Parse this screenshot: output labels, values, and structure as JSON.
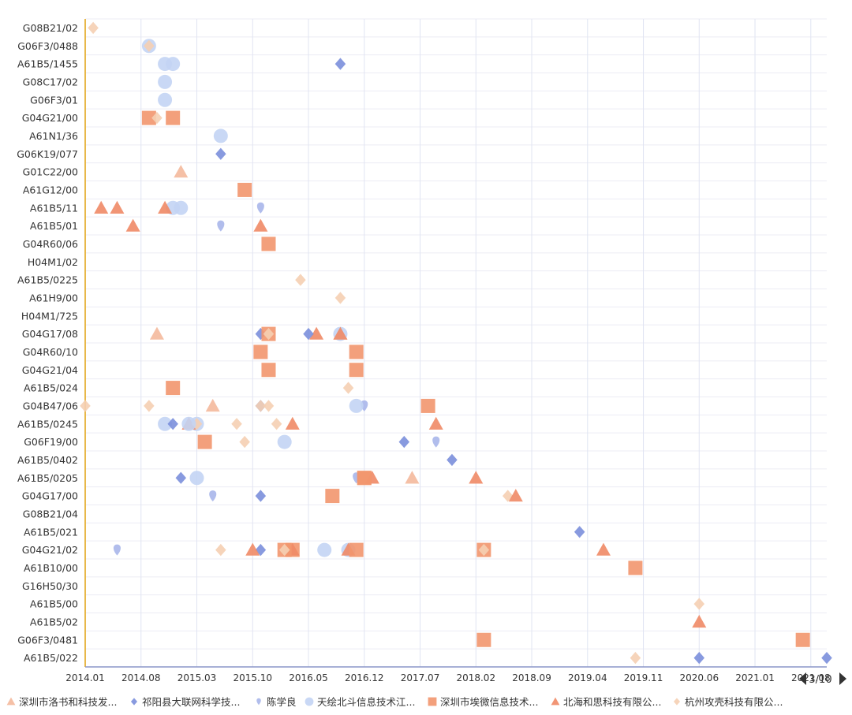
{
  "chart_data": {
    "type": "scatter",
    "title": "",
    "xlabel": "",
    "ylabel": "",
    "x_ticks": [
      "2014.01",
      "2014.08",
      "2015.03",
      "2015.10",
      "2016.05",
      "2016.12",
      "2017.07",
      "2018.02",
      "2018.09",
      "2019.04",
      "2019.11",
      "2020.06",
      "2021.01",
      "2021.08"
    ],
    "xlim": [
      "2014.01",
      "2021.10"
    ],
    "categories": [
      "G08B21/02",
      "G06F3/0488",
      "A61B5/1455",
      "G08C17/02",
      "G06F3/01",
      "G04G21/00",
      "A61N1/36",
      "G06K19/077",
      "G01C22/00",
      "A61G12/00",
      "A61B5/11",
      "A61B5/01",
      "G04R60/06",
      "H04M1/02",
      "A61B5/0225",
      "A61H9/00",
      "H04M1/725",
      "G04G17/08",
      "G04R60/10",
      "G04G21/04",
      "A61B5/024",
      "G04B47/06",
      "A61B5/0245",
      "G06F19/00",
      "A61B5/0402",
      "A61B5/0205",
      "G04G17/00",
      "G08B21/04",
      "A61B5/021",
      "G04G21/02",
      "A61B10/00",
      "G16H50/30",
      "A61B5/00",
      "A61B5/02",
      "G06F3/0481",
      "A61B5/022"
    ],
    "series": [
      {
        "name": "深圳市洛书和科技发...",
        "marker": "triangle",
        "color": "#f4b99c",
        "points": [
          [
            "2014.10",
            "G04G17/08"
          ],
          [
            "2015.01",
            "G01C22/00"
          ],
          [
            "2015.05",
            "G04B47/06"
          ],
          [
            "2016.09",
            "G04G17/08"
          ],
          [
            "2017.06",
            "A61B5/0205"
          ]
        ]
      },
      {
        "name": "祁阳县大联网科学技...",
        "marker": "diamond",
        "color": "#7b8fdb",
        "points": [
          [
            "2015.06",
            "G06K19/077"
          ],
          [
            "2017.05",
            "G06F19/00"
          ],
          [
            "2015.11",
            "G04G17/08"
          ],
          [
            "2015.11",
            "G04B47/06"
          ],
          [
            "2015.11",
            "G04G17/00"
          ],
          [
            "2015.11",
            "G04G21/02"
          ],
          [
            "2017.11",
            "A61B5/0402"
          ],
          [
            "2019.03",
            "A61B5/021"
          ]
        ]
      },
      {
        "name": "陈学良",
        "marker": "pin",
        "color": "#a9b6ea",
        "points": [
          [
            "2015.06",
            "A61B5/01"
          ],
          [
            "2016.12",
            "G04B47/06"
          ],
          [
            "2016.11",
            "A61B5/0205"
          ],
          [
            "2015.05",
            "G04G17/00"
          ],
          [
            "2014.05",
            "G04G21/02"
          ],
          [
            "2015.11",
            "A61B5/11"
          ],
          [
            "2017.09",
            "G06F19/00"
          ]
        ]
      },
      {
        "name": "天绘北斗信息技术江...",
        "marker": "circle",
        "color": "#c3d4f4",
        "points": [
          [
            "2015.06",
            "A61N1/36"
          ],
          [
            "2014.12",
            "A61B5/11"
          ],
          [
            "2016.09",
            "G04G17/08"
          ],
          [
            "2016.11",
            "G04B47/06"
          ],
          [
            "2015.03",
            "A61B5/0245"
          ],
          [
            "2015.03",
            "A61B5/0205"
          ],
          [
            "2016.07",
            "G04G21/02"
          ],
          [
            "2016.10",
            "G04G21/02"
          ]
        ]
      },
      {
        "name": "深圳市埃微信息技术...",
        "marker": "square",
        "color": "#f2966e",
        "points": [
          [
            "2014.09",
            "G04G21/00"
          ],
          [
            "2015.09",
            "A61G12/00"
          ],
          [
            "2015.12",
            "G04R60/06"
          ],
          [
            "2015.11",
            "G04R60/10"
          ],
          [
            "2016.11",
            "G04R60/10"
          ],
          [
            "2015.12",
            "G04G21/04"
          ],
          [
            "2016.11",
            "G04G21/04"
          ],
          [
            "2014.12",
            "A61B5/024"
          ],
          [
            "2017.08",
            "G04B47/06"
          ],
          [
            "2015.04",
            "G06F19/00"
          ],
          [
            "2016.12",
            "A61B5/0205"
          ],
          [
            "2016.08",
            "G04G17/00"
          ],
          [
            "2016.03",
            "G04G21/02"
          ],
          [
            "2018.03",
            "G04G21/02"
          ],
          [
            "2019.10",
            "A61B10/00"
          ],
          [
            "2018.03",
            "G06F3/0481"
          ],
          [
            "2021.07",
            "G06F3/0481"
          ]
        ]
      },
      {
        "name": "北海和思科技有限公...",
        "marker": "triangle",
        "color": "#f08a66",
        "points": [
          [
            "2014.03",
            "A61B5/11"
          ],
          [
            "2014.07",
            "A61B5/01"
          ],
          [
            "2015.11",
            "A61B5/01"
          ],
          [
            "2014.05",
            "A61B5/11"
          ],
          [
            "2014.11",
            "A61B5/11"
          ],
          [
            "2015.02",
            "A61B5/0245"
          ],
          [
            "2016.09",
            "G04G17/08"
          ],
          [
            "2017.01",
            "A61B5/0205"
          ],
          [
            "2018.02",
            "A61B5/0205"
          ],
          [
            "2016.03",
            "G04G21/02"
          ],
          [
            "2016.10",
            "G04G21/02"
          ],
          [
            "2019.06",
            "G04G21/02"
          ],
          [
            "2020.06",
            "A61B5/02"
          ]
        ]
      },
      {
        "name": "杭州攻壳科技有限公...",
        "marker": "diamond",
        "color": "#f5cfb3",
        "points": [
          [
            "2014.02",
            "G08B21/02"
          ],
          [
            "2014.10",
            "G04G21/00"
          ],
          [
            "2016.04",
            "A61B5/0225"
          ],
          [
            "2016.09",
            "A61H9/00"
          ],
          [
            "2016.10",
            "A61B5/024"
          ],
          [
            "2014.09",
            "G04B47/06"
          ],
          [
            "2015.06",
            "G04G21/02"
          ],
          [
            "2015.03",
            "A61B5/0245"
          ],
          [
            "2016.01",
            "A61B5/0245"
          ],
          [
            "2015.08",
            "A61B5/0245"
          ],
          [
            "2015.09",
            "G06F19/00"
          ],
          [
            "2020.06",
            "A61B5/00"
          ]
        ]
      }
    ],
    "extra_marks": [
      {
        "series_index": 3,
        "points": [
          [
            "2014.09",
            "G06F3/0488"
          ],
          [
            "2014.12",
            "A61B5/1455"
          ],
          [
            "2014.11",
            "G08C17/02"
          ],
          [
            "2014.11",
            "G06F3/01"
          ],
          [
            "2014.11",
            "A61B5/1455"
          ],
          [
            "2015.01",
            "A61B5/11"
          ],
          [
            "2014.11",
            "A61B5/0245"
          ],
          [
            "2015.02",
            "A61B5/0245"
          ],
          [
            "2016.02",
            "G06F19/00"
          ]
        ]
      },
      {
        "series_index": 4,
        "points": [
          [
            "2014.12",
            "G04G21/00"
          ],
          [
            "2015.12",
            "G04G17/08"
          ],
          [
            "2016.12",
            "A61B5/0205"
          ],
          [
            "2016.02",
            "G04G21/02"
          ],
          [
            "2016.11",
            "G04G21/02"
          ]
        ]
      },
      {
        "series_index": 6,
        "points": [
          [
            "2014.09",
            "G06F3/0488"
          ],
          [
            "2015.12",
            "G04G17/08"
          ],
          [
            "2015.12",
            "G04B47/06"
          ],
          [
            "2015.11",
            "G04B47/06"
          ],
          [
            "2014.01",
            "G04B47/06"
          ],
          [
            "2019.10",
            "A61B5/022"
          ],
          [
            "2018.06",
            "G04G17/00"
          ],
          [
            "2016.02",
            "G04G21/02"
          ],
          [
            "2018.03",
            "G04G21/02"
          ]
        ]
      },
      {
        "series_index": 5,
        "points": [
          [
            "2016.06",
            "G04G17/08"
          ],
          [
            "2016.03",
            "A61B5/0245"
          ],
          [
            "2017.09",
            "A61B5/0245"
          ],
          [
            "2015.10",
            "G04G21/02"
          ],
          [
            "2018.07",
            "G04G17/00"
          ]
        ]
      },
      {
        "series_index": 1,
        "points": [
          [
            "2016.05",
            "G04G17/08"
          ],
          [
            "2014.12",
            "A61B5/0245"
          ],
          [
            "2015.01",
            "A61B5/0205"
          ],
          [
            "2020.06",
            "A61B5/022"
          ],
          [
            "2021.10",
            "A61B5/022"
          ],
          [
            "2016.09",
            "A61B5/1455"
          ]
        ]
      }
    ],
    "grid": true,
    "legend_position": "bottom",
    "legend_page": "3/10"
  }
}
